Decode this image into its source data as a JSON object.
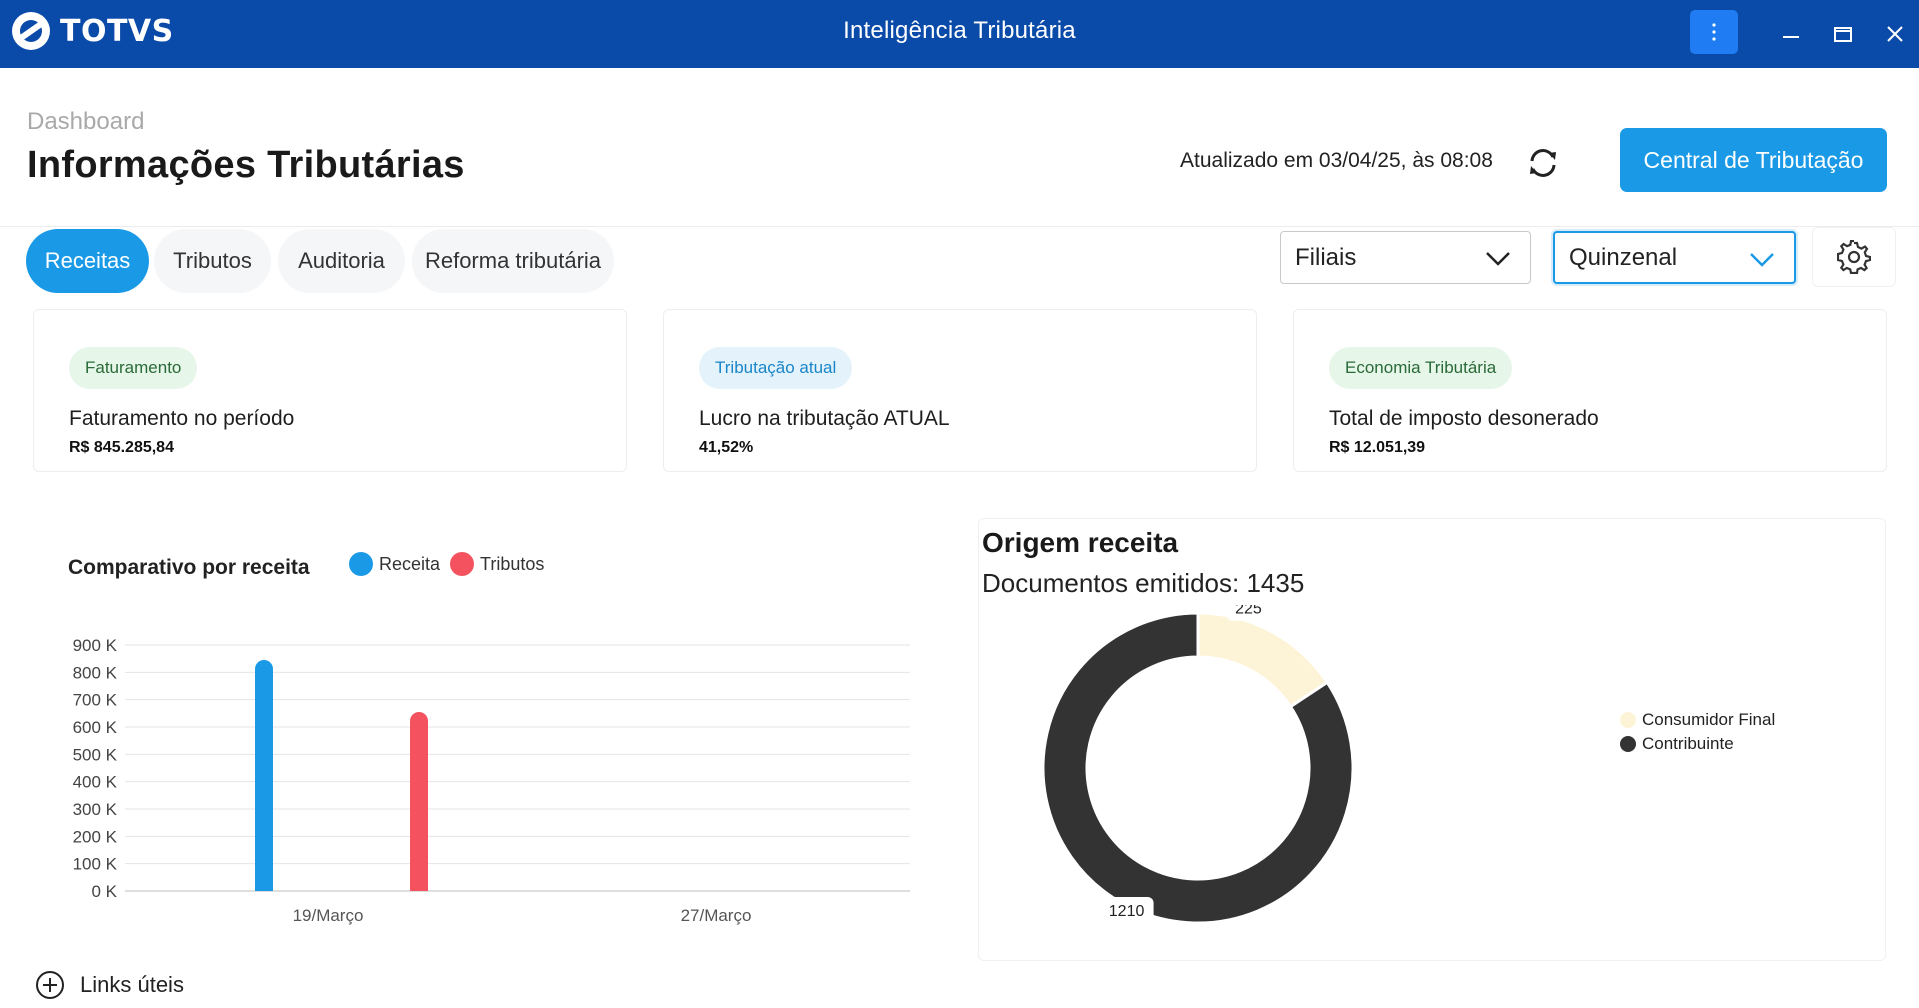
{
  "window": {
    "logo_text": "TOTVS",
    "title": "Inteligência Tributária",
    "icons": [
      "totvs-logo-icon",
      "more-vertical-icon",
      "minimize-icon",
      "maximize-icon",
      "close-icon"
    ]
  },
  "header": {
    "breadcrumb": "Dashboard",
    "title": "Informações Tributárias",
    "updated": "Atualizado em 03/04/25, às 08:08",
    "central_button": "Central de Tributação"
  },
  "tabs": [
    {
      "label": "Receitas",
      "active": true
    },
    {
      "label": "Tributos",
      "active": false
    },
    {
      "label": "Auditoria",
      "active": false
    },
    {
      "label": "Reforma tributária",
      "active": false
    }
  ],
  "filters": {
    "filiais": "Filiais",
    "periodo": "Quinzenal"
  },
  "cards": [
    {
      "badge": "Faturamento",
      "label": "Faturamento no período",
      "value": "R$ 845.285,84"
    },
    {
      "badge": "Tributação atual",
      "label": "Lucro na tributação ATUAL",
      "value": "41,52%"
    },
    {
      "badge": "Economia Tributária",
      "label": "Total de imposto desonerado",
      "value": "R$ 12.051,39"
    }
  ],
  "colors": {
    "primary": "#0a4aa8",
    "accent": "#1a9ae6",
    "receita": "#1a9ae6",
    "tributos": "#f4525f",
    "consumidor_final": "#fdf3d6",
    "contribuinte": "#333333"
  },
  "chart_data": [
    {
      "type": "bar",
      "title": "Comparativo por receita",
      "categories": [
        "19/Março",
        "27/Março"
      ],
      "series": [
        {
          "name": "Receita",
          "values": [
            845285.84,
            0
          ]
        },
        {
          "name": "Tributos",
          "values": [
            655000,
            0
          ]
        }
      ],
      "y_ticks": [
        "0 K",
        "100 K",
        "200 K",
        "300 K",
        "400 K",
        "500 K",
        "600 K",
        "700 K",
        "800 K",
        "900 K"
      ],
      "ylim": [
        0,
        900000
      ],
      "grid": true,
      "legend": "top"
    },
    {
      "type": "pie",
      "title": "Origem receita",
      "subtitle": "Documentos emitidos: 1435",
      "labels": [
        "Consumidor Final",
        "Contribuinte"
      ],
      "values": [
        225,
        1210
      ],
      "data_labels": [
        "225",
        "1210"
      ],
      "legend": "right"
    }
  ],
  "links": {
    "label": "Links úteis"
  }
}
